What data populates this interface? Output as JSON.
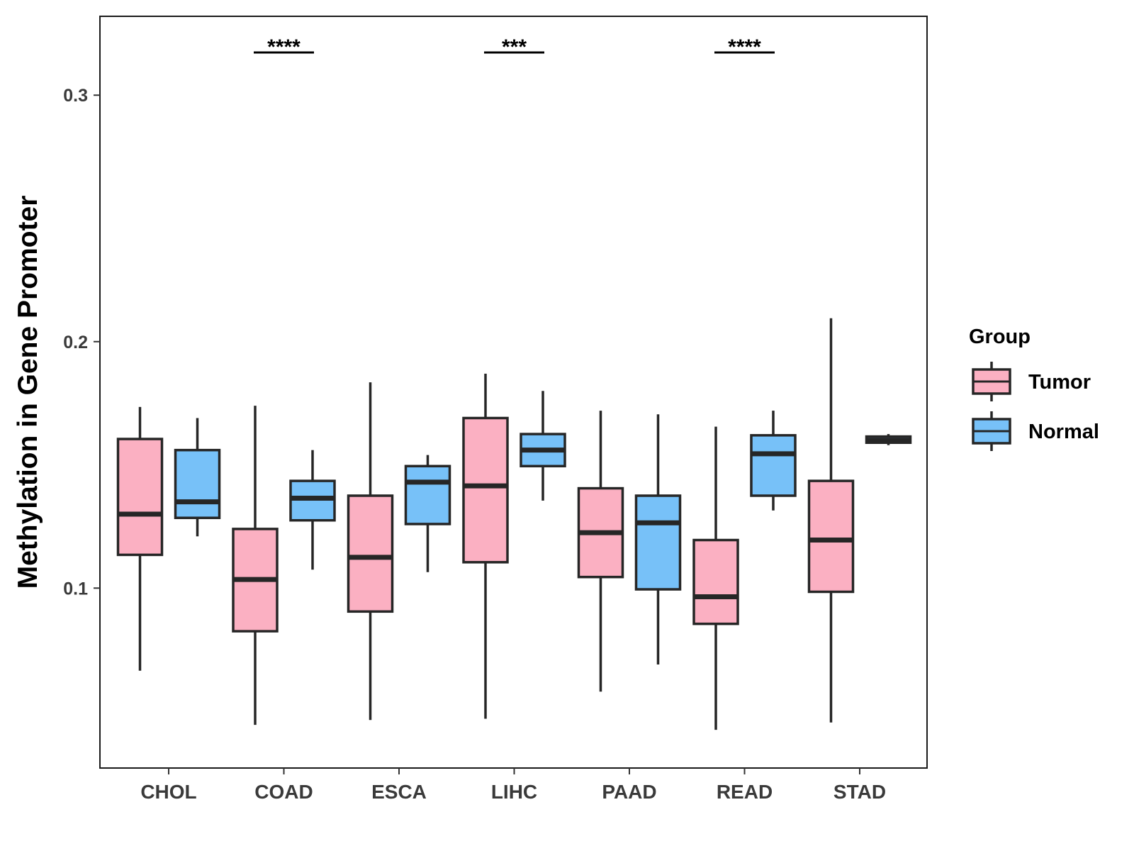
{
  "chart_data": {
    "type": "boxplot",
    "title": "",
    "xlabel": "",
    "ylabel": "Methylation in Gene Promoter",
    "ylim": [
      0.027,
      0.332
    ],
    "yticks": [
      0.1,
      0.2,
      0.3
    ],
    "ytick_labels": [
      "0.1",
      "0.2",
      "0.3"
    ],
    "categories": [
      "CHOL",
      "COAD",
      "ESCA",
      "LIHC",
      "PAAD",
      "READ",
      "STAD"
    ],
    "legend": {
      "title": "Group",
      "placement": "right",
      "entries": [
        {
          "name": "Tumor",
          "color": "#fbb0c2"
        },
        {
          "name": "Normal",
          "color": "#77c1f8"
        }
      ]
    },
    "series": [
      {
        "name": "Tumor",
        "color": "#fbb0c2",
        "boxes": [
          {
            "category": "CHOL",
            "whisker_low": 0.0665,
            "q1": 0.1135,
            "median": 0.13,
            "q3": 0.1605,
            "whisker_high": 0.1735
          },
          {
            "category": "COAD",
            "whisker_low": 0.0445,
            "q1": 0.0825,
            "median": 0.1035,
            "q3": 0.124,
            "whisker_high": 0.174
          },
          {
            "category": "ESCA",
            "whisker_low": 0.0465,
            "q1": 0.0905,
            "median": 0.1125,
            "q3": 0.1375,
            "whisker_high": 0.1835
          },
          {
            "category": "LIHC",
            "whisker_low": 0.047,
            "q1": 0.1105,
            "median": 0.1415,
            "q3": 0.169,
            "whisker_high": 0.187
          },
          {
            "category": "PAAD",
            "whisker_low": 0.058,
            "q1": 0.1045,
            "median": 0.1225,
            "q3": 0.1405,
            "whisker_high": 0.172
          },
          {
            "category": "READ",
            "whisker_low": 0.0425,
            "q1": 0.0855,
            "median": 0.0965,
            "q3": 0.1195,
            "whisker_high": 0.1655
          },
          {
            "category": "STAD",
            "whisker_low": 0.0455,
            "q1": 0.0985,
            "median": 0.1195,
            "q3": 0.1435,
            "whisker_high": 0.2095
          }
        ]
      },
      {
        "name": "Normal",
        "color": "#77c1f8",
        "boxes": [
          {
            "category": "CHOL",
            "whisker_low": 0.121,
            "q1": 0.1285,
            "median": 0.135,
            "q3": 0.156,
            "whisker_high": 0.169
          },
          {
            "category": "COAD",
            "whisker_low": 0.1075,
            "q1": 0.1275,
            "median": 0.1365,
            "q3": 0.1435,
            "whisker_high": 0.156
          },
          {
            "category": "ESCA",
            "whisker_low": 0.1065,
            "q1": 0.126,
            "median": 0.143,
            "q3": 0.1495,
            "whisker_high": 0.154
          },
          {
            "category": "LIHC",
            "whisker_low": 0.1355,
            "q1": 0.1495,
            "median": 0.156,
            "q3": 0.1625,
            "whisker_high": 0.18
          },
          {
            "category": "PAAD",
            "whisker_low": 0.069,
            "q1": 0.0995,
            "median": 0.1265,
            "q3": 0.1375,
            "whisker_high": 0.1705
          },
          {
            "category": "READ",
            "whisker_low": 0.1315,
            "q1": 0.1375,
            "median": 0.1545,
            "q3": 0.162,
            "whisker_high": 0.172
          },
          {
            "category": "STAD",
            "whisker_low": 0.158,
            "q1": 0.159,
            "median": 0.16,
            "q3": 0.1615,
            "whisker_high": 0.1625
          }
        ]
      }
    ],
    "significance": [
      {
        "category": "COAD",
        "label": "****"
      },
      {
        "category": "LIHC",
        "label": "***"
      },
      {
        "category": "READ",
        "label": "****"
      }
    ]
  }
}
